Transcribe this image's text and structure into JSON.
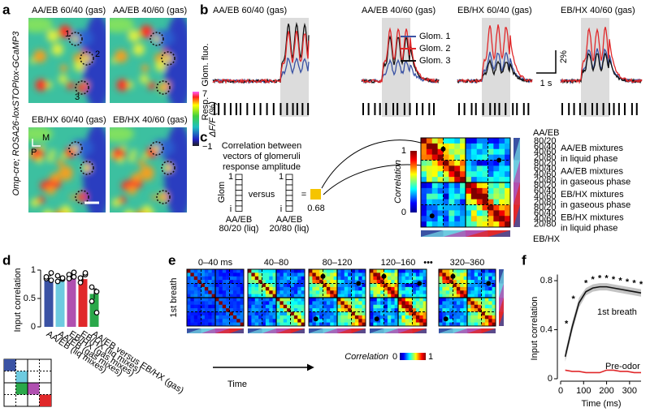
{
  "panel_a": {
    "label": "a",
    "titles": [
      "AA/EB 60/40 (gas)",
      "AA/EB 40/60 (gas)",
      "EB/HX 60/40 (gas)",
      "EB/HX 40/60 (gas)"
    ],
    "genotype": "Omp-cre; ROSA26-loxSTOPlox-GCaMP3",
    "roi_labels": [
      "1",
      "2",
      "3"
    ],
    "colorbar": {
      "max": "7",
      "min": "−1",
      "label": "ΔF/F (%)"
    },
    "orientation": [
      "M",
      "P"
    ]
  },
  "panel_b": {
    "label": "b",
    "titles": [
      "AA/EB 60/40 (gas)",
      "AA/EB 40/60 (gas)",
      "EB/HX 60/40 (gas)",
      "EB/HX 40/60 (gas)"
    ],
    "ylabel_fluo": "Glom. fluo.",
    "ylabel_resp": "Resp.",
    "legend": [
      {
        "name": "Glom. 1",
        "color": "#3a52a4"
      },
      {
        "name": "Glom. 2",
        "color": "#e0282a"
      },
      {
        "name": "Glom. 3",
        "color": "#111111"
      }
    ],
    "scale_y": "2%",
    "scale_x": "1 s"
  },
  "panel_c": {
    "label": "c",
    "description": [
      "Correlation between",
      "vectors of glomeruli",
      "response amplitude"
    ],
    "glom_label": "Glom",
    "vector_top": "1",
    "vector_bottom": "i",
    "versus": "versus",
    "equals": "=",
    "vector_a": [
      "AA/EB",
      "80/20 (liq)"
    ],
    "vector_b": [
      "AA/EB",
      "20/80 (liq)"
    ],
    "result": "0.68",
    "colorbar": {
      "max": "1",
      "min": "0",
      "label": "Correlation"
    },
    "mixture_top": "AA/EB",
    "mixture_bottom": "EB/HX",
    "groups": [
      {
        "color": "#3a52a4",
        "ratios": [
          "80/20",
          "60/40",
          "40/60",
          "20/80"
        ],
        "lines": [
          "AA/EB mixtures",
          "in liquid phase"
        ]
      },
      {
        "color": "#6ecbe0",
        "ratios": [
          "80/20",
          "60/40",
          "40/60",
          "20/80"
        ],
        "lines": [
          "AA/EB mixtures",
          "in gaseous phase"
        ]
      },
      {
        "color": "#b050b0",
        "ratios": [
          "80/20",
          "60/40",
          "40/60",
          "20/80"
        ],
        "lines": [
          "EB/HX mixtures",
          "in gaseous phase"
        ]
      },
      {
        "color": "#e0282a",
        "ratios": [
          "80/20",
          "60/40",
          "40/60",
          "20/80"
        ],
        "lines": [
          "EB/HX mixtures",
          "in liquid phase"
        ]
      }
    ]
  },
  "panel_d": {
    "type": "bar",
    "label": "d",
    "ylabel": "Input correlation",
    "categories": [
      "AA/EB (liq mixes)",
      "AA/EB (gas mixes)",
      "EB/HX (gas mixes)",
      "EB/HX (liq mixes)",
      "AA/EB versus EB/HX (gas)"
    ],
    "colors": [
      "#3a52a4",
      "#6ecbe0",
      "#b050b0",
      "#e0282a",
      "#2aa84a"
    ],
    "values": [
      0.86,
      0.84,
      0.88,
      0.84,
      0.58
    ],
    "errors": [
      0.04,
      0.04,
      0.05,
      0.05,
      0.09
    ],
    "points": [
      [
        0.85,
        0.82,
        0.88,
        0.95
      ],
      [
        0.8,
        0.84,
        0.9,
        0.86
      ],
      [
        0.92,
        0.96,
        0.85,
        0.88
      ],
      [
        0.86,
        0.92,
        0.78,
        0.95
      ],
      [
        0.7,
        0.62,
        0.45,
        0.25
      ]
    ],
    "ylim": [
      0,
      1
    ],
    "yticks": [
      0,
      0.5,
      1
    ]
  },
  "panel_e": {
    "label": "e",
    "windows": [
      "0–40 ms",
      "40–80",
      "80–120",
      "120–160",
      "320–360"
    ],
    "ellipsis": "•••",
    "ylabel": "1st breath",
    "time_label": "Time",
    "colorbar": {
      "label": "Correlation",
      "min": "0",
      "max": "1"
    }
  },
  "panel_f": {
    "type": "line",
    "label": "f",
    "xlabel": "Time (ms)",
    "ylabel": "Input correlation",
    "x": [
      20,
      50,
      80,
      110,
      140,
      170,
      200,
      230,
      260,
      290,
      320,
      350
    ],
    "series": [
      {
        "name": "1st breath",
        "color": "#111111",
        "values": [
          0.18,
          0.42,
          0.62,
          0.71,
          0.74,
          0.75,
          0.75,
          0.74,
          0.73,
          0.72,
          0.71,
          0.7
        ],
        "errors": [
          0.04,
          0.04,
          0.04,
          0.03,
          0.03,
          0.03,
          0.03,
          0.03,
          0.03,
          0.03,
          0.03,
          0.03
        ],
        "significance": [
          null,
          "*",
          "*",
          "*",
          "*",
          "*",
          "*",
          "*",
          "*",
          "*",
          "*",
          "*"
        ]
      },
      {
        "name": "Pre-odor",
        "color": "#e0282a",
        "values": [
          0.07,
          0.06,
          0.06,
          0.05,
          0.05,
          0.05,
          0.07,
          0.07,
          0.06,
          0.06,
          0.05,
          0.05
        ]
      }
    ],
    "xlim": [
      0,
      350
    ],
    "ylim": [
      0,
      0.85
    ],
    "xticks": [
      0,
      100,
      200,
      300
    ],
    "yticks": [
      0,
      0.4,
      0.8
    ]
  }
}
